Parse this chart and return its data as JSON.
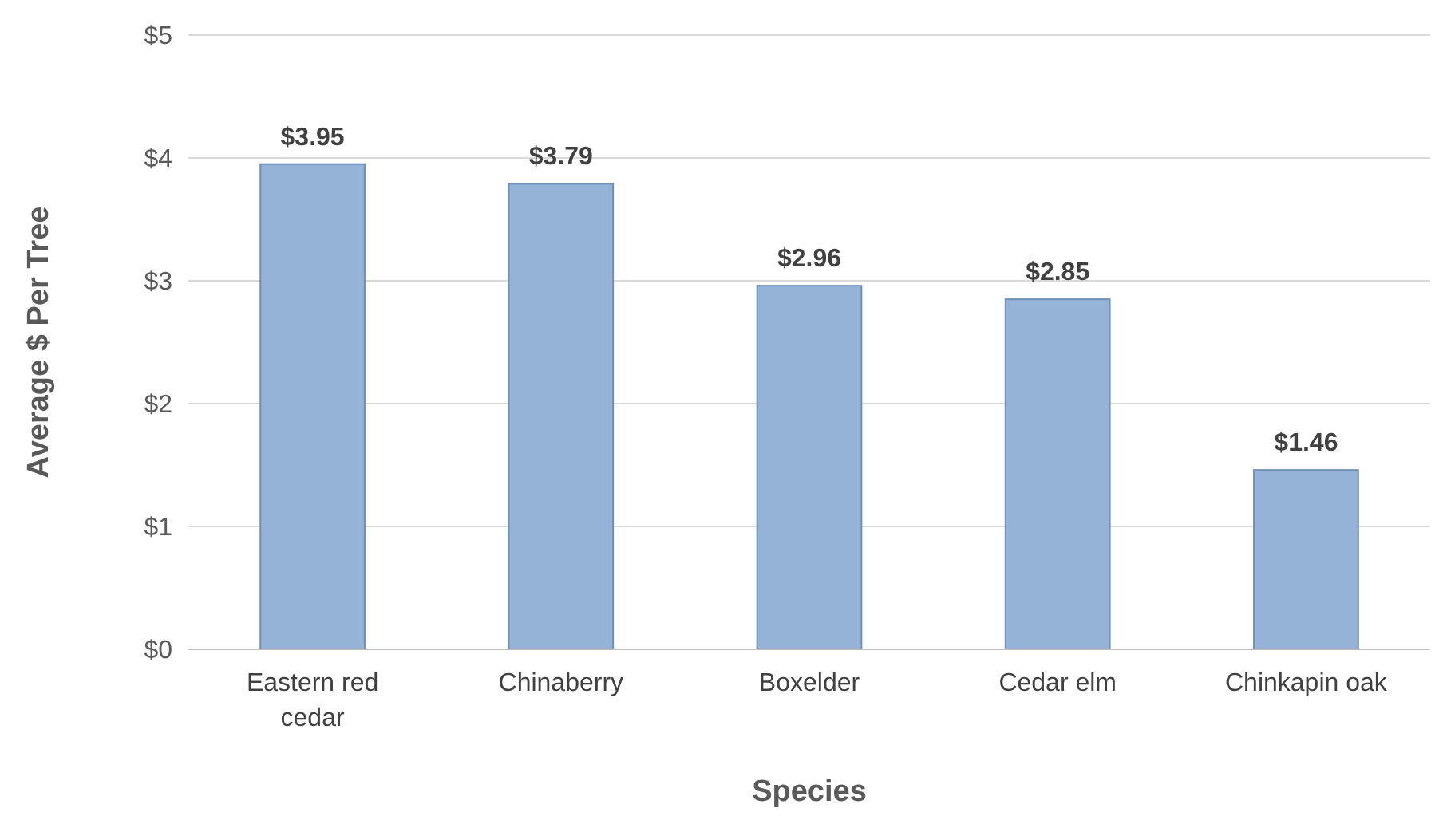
{
  "chart_data": {
    "type": "bar",
    "xlabel": "Species",
    "ylabel": "Average $ Per Tree",
    "categories": [
      "Eastern red cedar",
      "Chinaberry",
      "Boxelder",
      "Cedar elm",
      "Chinkapin oak"
    ],
    "values": [
      3.95,
      3.79,
      2.96,
      2.85,
      1.46
    ],
    "value_labels": [
      "$3.95",
      "$3.79",
      "$2.96",
      "$2.85",
      "$1.46"
    ],
    "color": "#95b3d7",
    "ylim": [
      0,
      5
    ],
    "yticks": [
      {
        "value": 0,
        "label": "$0"
      },
      {
        "value": 1,
        "label": "$1"
      },
      {
        "value": 2,
        "label": "$2"
      },
      {
        "value": 3,
        "label": "$3"
      },
      {
        "value": 4,
        "label": "$4"
      },
      {
        "value": 5,
        "label": "$5"
      }
    ],
    "grid": "y"
  }
}
